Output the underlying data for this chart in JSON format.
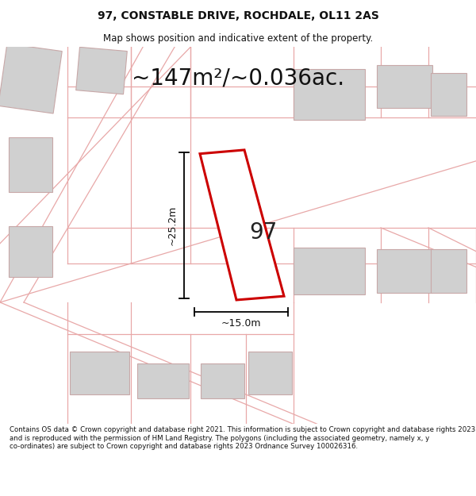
{
  "title_line1": "97, CONSTABLE DRIVE, ROCHDALE, OL11 2AS",
  "title_line2": "Map shows position and indicative extent of the property.",
  "area_text": "~147m²/~0.036ac.",
  "dim_vertical": "~25.2m",
  "dim_horizontal": "~15.0m",
  "label_97": "97",
  "footer_text": "Contains OS data © Crown copyright and database right 2021. This information is subject to Crown copyright and database rights 2023 and is reproduced with the permission of HM Land Registry. The polygons (including the associated geometry, namely x, y co-ordinates) are subject to Crown copyright and database rights 2023 Ordnance Survey 100026316.",
  "bg_color": "#ffffff",
  "map_bg_color": "#f7f0f0",
  "plot_outline_color": "#cc0000",
  "cadastral_color": "#e8a8a8",
  "building_fill": "#d0d0d0",
  "building_edge": "#c8a8a8",
  "title_fontsize": 10,
  "subtitle_fontsize": 8.5,
  "area_fontsize": 20,
  "label_fontsize": 20,
  "dim_fontsize": 9,
  "footer_fontsize": 6.2
}
